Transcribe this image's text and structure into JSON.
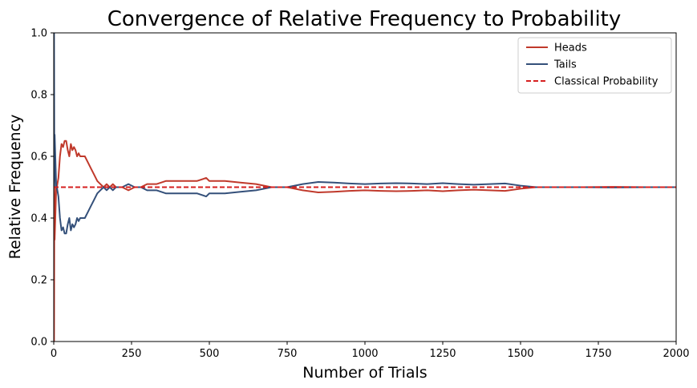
{
  "chart_data": {
    "type": "line",
    "title": "Convergence of Relative Frequency to Probability",
    "xlabel": "Number of Trials",
    "ylabel": "Relative Frequency",
    "xlim": [
      0,
      2000
    ],
    "ylim": [
      0,
      1
    ],
    "xticks": [
      0,
      250,
      500,
      750,
      1000,
      1250,
      1500,
      1750,
      2000
    ],
    "yticks": [
      0.0,
      0.2,
      0.4,
      0.6,
      0.8,
      1.0
    ],
    "xtick_labels": [
      "0",
      "250",
      "500",
      "750",
      "1000",
      "1250",
      "1500",
      "1750",
      "2000"
    ],
    "ytick_labels": [
      "0.0",
      "0.2",
      "0.4",
      "0.6",
      "0.8",
      "1.0"
    ],
    "grid": false,
    "legend_position": "top-right",
    "series": [
      {
        "name": "Heads",
        "color": "#c0392b",
        "style": "solid",
        "x": [
          1,
          2,
          3,
          5,
          8,
          10,
          15,
          20,
          25,
          30,
          35,
          40,
          45,
          50,
          55,
          60,
          65,
          70,
          75,
          80,
          85,
          90,
          95,
          100,
          110,
          120,
          130,
          140,
          150,
          160,
          170,
          180,
          190,
          200,
          220,
          240,
          260,
          280,
          300,
          330,
          360,
          400,
          430,
          460,
          490,
          500,
          520,
          550,
          600,
          650,
          700,
          750,
          800,
          850,
          900,
          950,
          1000,
          1050,
          1100,
          1150,
          1200,
          1250,
          1300,
          1350,
          1400,
          1450,
          1500,
          1550,
          1600,
          1700,
          1800,
          1900,
          2000
        ],
        "y": [
          0.0,
          0.5,
          0.33,
          0.4,
          0.5,
          0.5,
          0.53,
          0.6,
          0.64,
          0.63,
          0.65,
          0.65,
          0.62,
          0.6,
          0.64,
          0.62,
          0.63,
          0.62,
          0.6,
          0.61,
          0.6,
          0.6,
          0.6,
          0.6,
          0.58,
          0.56,
          0.54,
          0.52,
          0.51,
          0.5,
          0.51,
          0.5,
          0.51,
          0.5,
          0.5,
          0.49,
          0.5,
          0.5,
          0.51,
          0.51,
          0.52,
          0.52,
          0.52,
          0.52,
          0.53,
          0.52,
          0.52,
          0.52,
          0.515,
          0.51,
          0.5,
          0.5,
          0.49,
          0.483,
          0.485,
          0.488,
          0.49,
          0.488,
          0.487,
          0.488,
          0.49,
          0.487,
          0.49,
          0.492,
          0.49,
          0.488,
          0.495,
          0.5,
          0.5,
          0.5,
          0.501,
          0.5,
          0.5
        ]
      },
      {
        "name": "Tails",
        "color": "#34507a",
        "style": "solid",
        "x": [
          1,
          2,
          3,
          5,
          8,
          10,
          15,
          20,
          25,
          30,
          35,
          40,
          45,
          50,
          55,
          60,
          65,
          70,
          75,
          80,
          85,
          90,
          95,
          100,
          110,
          120,
          130,
          140,
          150,
          160,
          170,
          180,
          190,
          200,
          220,
          240,
          260,
          280,
          300,
          330,
          360,
          400,
          430,
          460,
          490,
          500,
          520,
          550,
          600,
          650,
          700,
          750,
          800,
          850,
          900,
          950,
          1000,
          1050,
          1100,
          1150,
          1200,
          1250,
          1300,
          1350,
          1400,
          1450,
          1500,
          1550,
          1600,
          1700,
          1800,
          1900,
          2000
        ],
        "y": [
          1.0,
          0.5,
          0.67,
          0.6,
          0.5,
          0.5,
          0.47,
          0.4,
          0.36,
          0.37,
          0.35,
          0.35,
          0.38,
          0.4,
          0.36,
          0.38,
          0.37,
          0.38,
          0.4,
          0.39,
          0.4,
          0.4,
          0.4,
          0.4,
          0.42,
          0.44,
          0.46,
          0.48,
          0.49,
          0.5,
          0.49,
          0.5,
          0.49,
          0.5,
          0.5,
          0.51,
          0.5,
          0.5,
          0.49,
          0.49,
          0.48,
          0.48,
          0.48,
          0.48,
          0.47,
          0.48,
          0.48,
          0.48,
          0.485,
          0.49,
          0.5,
          0.5,
          0.51,
          0.517,
          0.515,
          0.512,
          0.51,
          0.512,
          0.513,
          0.512,
          0.51,
          0.513,
          0.51,
          0.508,
          0.51,
          0.512,
          0.505,
          0.5,
          0.5,
          0.5,
          0.499,
          0.5,
          0.5
        ]
      },
      {
        "name": "Classical Probability",
        "color": "#d62020",
        "style": "dashed",
        "x": [
          0,
          2000
        ],
        "y": [
          0.5,
          0.5
        ]
      }
    ]
  }
}
